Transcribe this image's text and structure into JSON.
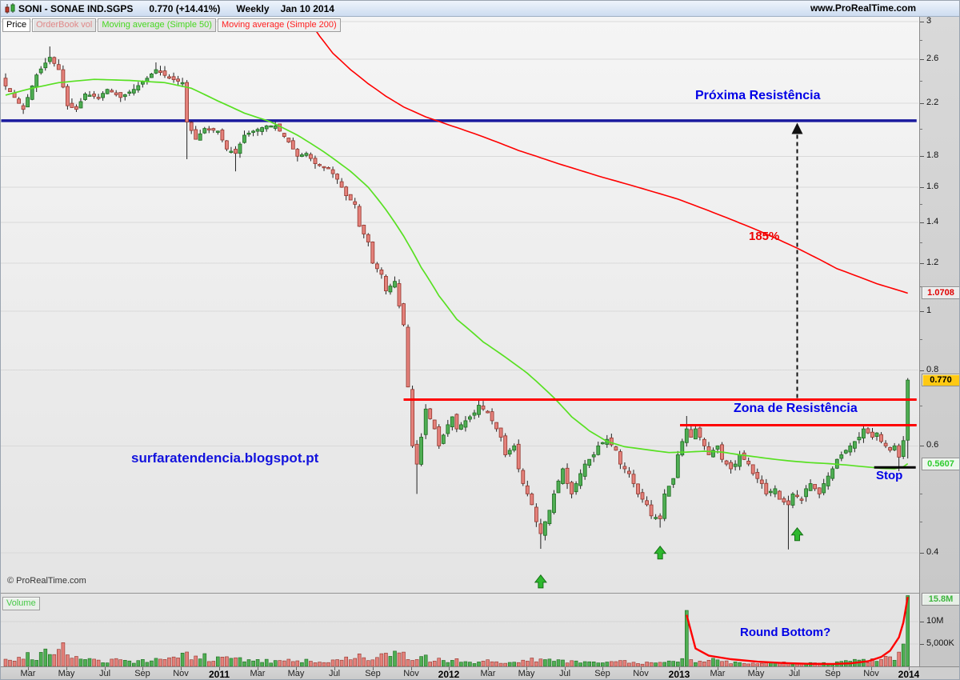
{
  "header": {
    "title_symbol": "SONI - SONAE IND.SGPS",
    "title_price": "0.770 (+14.41%)",
    "title_timeframe": "Weekly",
    "title_date": "Jan 10 2014",
    "website": "www.ProRealTime.com"
  },
  "toolbar": {
    "chips": [
      {
        "label": "Price",
        "color": "#000000",
        "bg": "#ffffff"
      },
      {
        "label": "OrderBook vol",
        "color": "#e08888",
        "bg": "#e3e3e3"
      },
      {
        "label": "Moving average (Simple 50)",
        "color": "#46d820",
        "bg": "#e3e3e3"
      },
      {
        "label": "Moving average (Simple 200)",
        "color": "#ff2020",
        "bg": "#f0f0f0"
      }
    ]
  },
  "volume_chip_label": "Volume",
  "copyright": "© ProRealTime.com",
  "annotations": {
    "watermark": "surfaratendencia.blogspot.pt",
    "proxima_resistencia": "Próxima Resistência",
    "gain_label": "185%",
    "zona_resistencia": "Zona de Resistência",
    "stop_label": "Stop",
    "round_bottom": "Round Bottom?"
  },
  "axis": {
    "price_ticks": [
      [
        "3",
        3
      ],
      [
        "2.6",
        2.6
      ],
      [
        "2.2",
        2.2
      ],
      [
        "1.8",
        1.8
      ],
      [
        "1.6",
        1.6
      ],
      [
        "1.4",
        1.4
      ],
      [
        "1.2",
        1.2
      ],
      [
        "1",
        1.0
      ],
      [
        "0.8",
        0.8
      ],
      [
        "0.6",
        0.6
      ],
      [
        "0.4",
        0.4
      ]
    ],
    "minor_ticks": [
      2.8,
      2.4,
      2.0,
      1.5,
      1.3,
      1.1,
      0.9,
      0.7,
      0.5,
      0.45
    ],
    "volume_ticks": [
      [
        "10M",
        10
      ],
      [
        "5,000K",
        5
      ]
    ],
    "badges": [
      {
        "label": "1.0708",
        "price": 1.0708,
        "style": "red"
      },
      {
        "label": "0.770",
        "price": 0.77,
        "style": "yellow"
      },
      {
        "label": "0.5607",
        "price": 0.5607,
        "style": "green"
      }
    ],
    "volume_badge": {
      "label": "15.8M",
      "volume": 15.8,
      "style": "greenvol"
    }
  },
  "x_axis": {
    "labels": [
      [
        "Mar",
        5,
        0
      ],
      [
        "May",
        13.7,
        0
      ],
      [
        "Jul",
        22.4,
        0
      ],
      [
        "Sep",
        31,
        0
      ],
      [
        "Nov",
        39.7,
        0
      ],
      [
        "2011",
        48.3,
        1
      ],
      [
        "Mar",
        57,
        0
      ],
      [
        "May",
        65.7,
        0
      ],
      [
        "Jul",
        74.4,
        0
      ],
      [
        "Sep",
        83,
        0
      ],
      [
        "Nov",
        91.7,
        0
      ],
      [
        "2012",
        100.3,
        1
      ],
      [
        "Mar",
        109,
        0
      ],
      [
        "May",
        117.7,
        0
      ],
      [
        "Jul",
        126.4,
        0
      ],
      [
        "Sep",
        135,
        0
      ],
      [
        "Nov",
        143.7,
        0
      ],
      [
        "2013",
        152.3,
        1
      ],
      [
        "Mar",
        161,
        0
      ],
      [
        "May",
        169.7,
        0
      ],
      [
        "Jul",
        178.4,
        0
      ],
      [
        "Sep",
        187,
        0
      ],
      [
        "Nov",
        195.7,
        0
      ],
      [
        "2014",
        204.3,
        1
      ]
    ]
  },
  "chart_data": {
    "type": "candlestick",
    "title": "SONI - SONAE IND.SGPS Weekly",
    "last_price": 0.77,
    "change_pct": "+14.41%",
    "last_date": "Jan 10 2014",
    "scale": "log",
    "price_range_labels": [
      0.4,
      3.0
    ],
    "weeks_total": 205,
    "levels": {
      "proxima_resistencia_price": 2.06,
      "zona_upper_price": 0.715,
      "zona_lower_price": 0.649,
      "stop_price": 0.553,
      "gain_to_resistance": "185%",
      "ma50_last": 0.5607,
      "ma200_last": 1.0708
    },
    "price_close_keyframes": [
      [
        0,
        2.35
      ],
      [
        2,
        2.25
      ],
      [
        4,
        2.15
      ],
      [
        7,
        2.45
      ],
      [
        10,
        2.62
      ],
      [
        12,
        2.5
      ],
      [
        14,
        2.18
      ],
      [
        16,
        2.15
      ],
      [
        18,
        2.28
      ],
      [
        21,
        2.25
      ],
      [
        23,
        2.32
      ],
      [
        26,
        2.25
      ],
      [
        29,
        2.32
      ],
      [
        32,
        2.42
      ],
      [
        34,
        2.5
      ],
      [
        37,
        2.42
      ],
      [
        40,
        2.38
      ],
      [
        41,
        2.05
      ],
      [
        43,
        1.92
      ],
      [
        45,
        2.0
      ],
      [
        48,
        1.98
      ],
      [
        50,
        1.85
      ],
      [
        52,
        1.82
      ],
      [
        54,
        1.95
      ],
      [
        56,
        1.98
      ],
      [
        59,
        2.02
      ],
      [
        61,
        2.02
      ],
      [
        64,
        1.9
      ],
      [
        66,
        1.8
      ],
      [
        68,
        1.82
      ],
      [
        70,
        1.75
      ],
      [
        73,
        1.72
      ],
      [
        75,
        1.65
      ],
      [
        77,
        1.55
      ],
      [
        79,
        1.5
      ],
      [
        80,
        1.38
      ],
      [
        82,
        1.3
      ],
      [
        83,
        1.2
      ],
      [
        85,
        1.15
      ],
      [
        86,
        1.08
      ],
      [
        88,
        1.12
      ],
      [
        89,
        1.02
      ],
      [
        90,
        0.95
      ],
      [
        91,
        0.75
      ],
      [
        92,
        0.6
      ],
      [
        93,
        0.56
      ],
      [
        94,
        0.62
      ],
      [
        95,
        0.69
      ],
      [
        97,
        0.64
      ],
      [
        98,
        0.6
      ],
      [
        100,
        0.65
      ],
      [
        101,
        0.67
      ],
      [
        102,
        0.64
      ],
      [
        104,
        0.66
      ],
      [
        106,
        0.68
      ],
      [
        107,
        0.7
      ],
      [
        109,
        0.68
      ],
      [
        110,
        0.66
      ],
      [
        112,
        0.62
      ],
      [
        113,
        0.58
      ],
      [
        115,
        0.6
      ],
      [
        116,
        0.55
      ],
      [
        117,
        0.52
      ],
      [
        119,
        0.48
      ],
      [
        120,
        0.45
      ],
      [
        121,
        0.43
      ],
      [
        123,
        0.47
      ],
      [
        124,
        0.5
      ],
      [
        126,
        0.55
      ],
      [
        127,
        0.52
      ],
      [
        128,
        0.5
      ],
      [
        130,
        0.54
      ],
      [
        131,
        0.56
      ],
      [
        133,
        0.58
      ],
      [
        134,
        0.6
      ],
      [
        136,
        0.615
      ],
      [
        138,
        0.59
      ],
      [
        139,
        0.56
      ],
      [
        141,
        0.54
      ],
      [
        142,
        0.52
      ],
      [
        143,
        0.5
      ],
      [
        145,
        0.48
      ],
      [
        146,
        0.46
      ],
      [
        148,
        0.455
      ],
      [
        149,
        0.5
      ],
      [
        151,
        0.53
      ],
      [
        152,
        0.58
      ],
      [
        154,
        0.64
      ],
      [
        155,
        0.62
      ],
      [
        156,
        0.64
      ],
      [
        158,
        0.6
      ],
      [
        159,
        0.58
      ],
      [
        161,
        0.6
      ],
      [
        162,
        0.57
      ],
      [
        164,
        0.55
      ],
      [
        165,
        0.56
      ],
      [
        166,
        0.58
      ],
      [
        168,
        0.56
      ],
      [
        169,
        0.54
      ],
      [
        171,
        0.52
      ],
      [
        172,
        0.5
      ],
      [
        174,
        0.51
      ],
      [
        175,
        0.49
      ],
      [
        177,
        0.48
      ],
      [
        178,
        0.5
      ],
      [
        180,
        0.49
      ],
      [
        181,
        0.51
      ],
      [
        182,
        0.52
      ],
      [
        184,
        0.5
      ],
      [
        185,
        0.52
      ],
      [
        187,
        0.55
      ],
      [
        188,
        0.57
      ],
      [
        190,
        0.59
      ],
      [
        191,
        0.6
      ],
      [
        193,
        0.62
      ],
      [
        194,
        0.64
      ],
      [
        196,
        0.62
      ],
      [
        197,
        0.63
      ],
      [
        198,
        0.61
      ],
      [
        200,
        0.59
      ],
      [
        201,
        0.6
      ],
      [
        202,
        0.575
      ],
      [
        203,
        0.612
      ],
      [
        204,
        0.77
      ]
    ],
    "ohlc_overrides": {
      "10": {
        "h": 2.73
      },
      "34": {
        "h": 2.57
      },
      "41": {
        "l": 1.78
      },
      "52": {
        "l": 1.7
      },
      "93": {
        "l": 0.5
      },
      "107": {
        "h": 0.712
      },
      "121": {
        "l": 0.406
      },
      "148": {
        "l": 0.44
      },
      "154": {
        "h": 0.672
      },
      "177": {
        "l": 0.405
      },
      "202": {
        "l": 0.545
      },
      "204": {
        "o": 0.613,
        "h": 0.776,
        "l": 0.572,
        "c": 0.77
      }
    },
    "ma50_keyframes": [
      [
        0,
        2.27
      ],
      [
        6,
        2.33
      ],
      [
        12,
        2.38
      ],
      [
        20,
        2.41
      ],
      [
        28,
        2.4
      ],
      [
        36,
        2.38
      ],
      [
        42,
        2.33
      ],
      [
        48,
        2.22
      ],
      [
        54,
        2.12
      ],
      [
        60,
        2.05
      ],
      [
        66,
        1.95
      ],
      [
        72,
        1.83
      ],
      [
        78,
        1.7
      ],
      [
        82,
        1.6
      ],
      [
        86,
        1.47
      ],
      [
        90,
        1.33
      ],
      [
        94,
        1.18
      ],
      [
        98,
        1.06
      ],
      [
        102,
        0.97
      ],
      [
        108,
        0.89
      ],
      [
        114,
        0.83
      ],
      [
        118,
        0.79
      ],
      [
        124,
        0.72
      ],
      [
        128,
        0.67
      ],
      [
        132,
        0.635
      ],
      [
        136,
        0.61
      ],
      [
        140,
        0.598
      ],
      [
        146,
        0.59
      ],
      [
        150,
        0.585
      ],
      [
        154,
        0.586
      ],
      [
        158,
        0.588
      ],
      [
        162,
        0.586
      ],
      [
        166,
        0.58
      ],
      [
        170,
        0.575
      ],
      [
        174,
        0.57
      ],
      [
        178,
        0.566
      ],
      [
        182,
        0.563
      ],
      [
        186,
        0.561
      ],
      [
        190,
        0.558
      ],
      [
        194,
        0.5545
      ],
      [
        198,
        0.551
      ],
      [
        201,
        0.55
      ],
      [
        203,
        0.554
      ],
      [
        204,
        0.5607
      ]
    ],
    "ma200_keyframes": [
      [
        69,
        2.98
      ],
      [
        71,
        2.84
      ],
      [
        74,
        2.66
      ],
      [
        78,
        2.5
      ],
      [
        82,
        2.37
      ],
      [
        86,
        2.26
      ],
      [
        90,
        2.17
      ],
      [
        95,
        2.09
      ],
      [
        100,
        2.03
      ],
      [
        107,
        1.95
      ],
      [
        116,
        1.84
      ],
      [
        125,
        1.75
      ],
      [
        134,
        1.67
      ],
      [
        143,
        1.6
      ],
      [
        152,
        1.53
      ],
      [
        161,
        1.445
      ],
      [
        170,
        1.36
      ],
      [
        179,
        1.27
      ],
      [
        188,
        1.175
      ],
      [
        197,
        1.11
      ],
      [
        204,
        1.0708
      ]
    ],
    "volume_base_keyframes": [
      [
        0,
        2.0
      ],
      [
        6,
        2.2
      ],
      [
        9,
        2.8
      ],
      [
        13,
        2.6
      ],
      [
        16,
        1.8
      ],
      [
        22,
        1.3
      ],
      [
        30,
        1.3
      ],
      [
        38,
        1.5
      ],
      [
        41,
        2.6
      ],
      [
        48,
        1.7
      ],
      [
        56,
        1.3
      ],
      [
        64,
        1.2
      ],
      [
        72,
        1.2
      ],
      [
        80,
        2.0
      ],
      [
        86,
        2.2
      ],
      [
        90,
        2.8
      ],
      [
        96,
        1.7
      ],
      [
        104,
        1.1
      ],
      [
        112,
        1.0
      ],
      [
        120,
        1.4
      ],
      [
        128,
        0.9
      ],
      [
        136,
        1.1
      ],
      [
        144,
        0.8
      ],
      [
        150,
        1.2
      ],
      [
        154,
        1.6
      ],
      [
        158,
        1.4
      ],
      [
        164,
        1.0
      ],
      [
        170,
        0.8
      ],
      [
        176,
        0.7
      ],
      [
        182,
        0.6
      ],
      [
        188,
        0.8
      ],
      [
        193,
        1.2
      ],
      [
        197,
        1.5
      ],
      [
        201,
        2.2
      ],
      [
        204,
        4.0
      ]
    ],
    "volume_spikes": {
      "9": 3.9,
      "13": 5.3,
      "90": 3.2,
      "154": 12.5,
      "202": 3.2,
      "203": 5.0,
      "204": 15.8
    },
    "round_bottom_curve": [
      [
        154,
        11.5
      ],
      [
        156,
        4.0
      ],
      [
        159,
        2.4
      ],
      [
        164,
        1.6
      ],
      [
        170,
        1.05
      ],
      [
        176,
        0.75
      ],
      [
        182,
        0.58
      ],
      [
        187,
        0.55
      ],
      [
        191,
        0.68
      ],
      [
        195,
        1.15
      ],
      [
        198,
        2.1
      ],
      [
        200,
        3.5
      ],
      [
        202,
        6.5
      ],
      [
        203,
        9.8
      ],
      [
        204,
        15.5
      ]
    ],
    "buy_arrows": [
      [
        121,
        0.372
      ],
      [
        148,
        0.415
      ],
      [
        179,
        0.445
      ]
    ],
    "gain_arrow": {
      "week": 179,
      "from_price": 0.715,
      "to_price": 2.05
    },
    "lines": {
      "blue_resistance": {
        "price": 2.06,
        "from_week": -1,
        "to_week": 206,
        "color": "#1a1a9e",
        "w": 3.5
      },
      "zone_upper": {
        "price": 0.715,
        "from_week": 90,
        "to_week": 206,
        "color": "#ff0000",
        "w": 3
      },
      "zone_lower": {
        "price": 0.649,
        "from_week": 152.5,
        "to_week": 206,
        "color": "#ff0000",
        "w": 3
      },
      "stop": {
        "price": 0.553,
        "from_week": 196.4,
        "to_week": 205.8,
        "color": "#000000",
        "w": 3
      }
    },
    "colors": {
      "up_fill": "#4fae53",
      "up_stroke": "#1c6b1f",
      "down_fill": "#e4817b",
      "down_stroke": "#93352c",
      "ma50": "#58e022",
      "ma200": "#ff0000",
      "grid": "#d9d9d9",
      "wick": "#222222"
    }
  }
}
